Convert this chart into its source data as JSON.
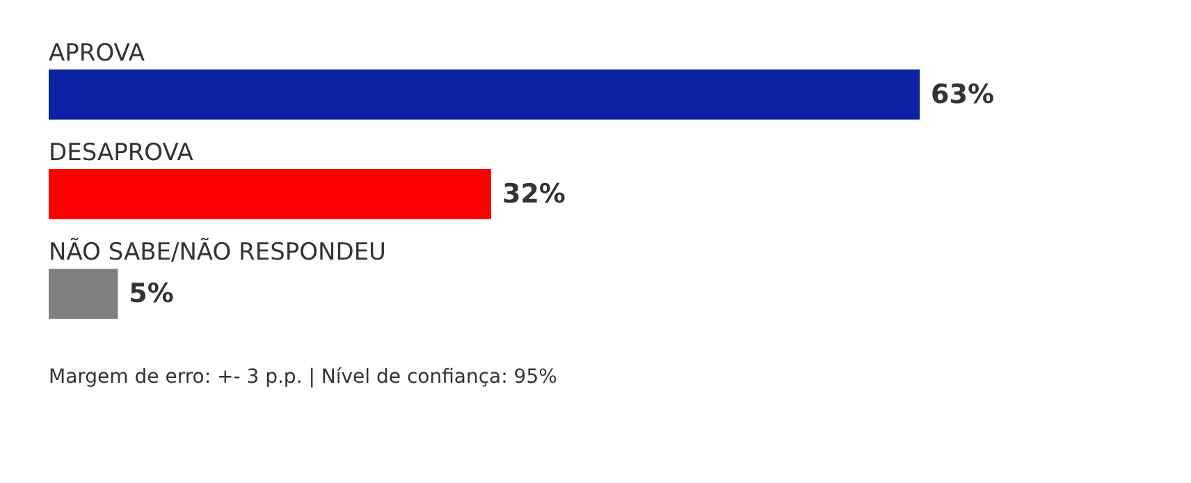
{
  "chart_data": {
    "type": "bar",
    "orientation": "horizontal",
    "categories": [
      "APROVA",
      "DESAPROVA",
      "NÃO SABE/NÃO RESPONDEU"
    ],
    "values": [
      63,
      32,
      5
    ],
    "colors": [
      "#0a22a3",
      "#ff0000",
      "#808080"
    ],
    "data_labels": true,
    "value_labels": [
      "63%",
      "32%",
      "5%"
    ],
    "annotations": [
      "Margem de erro: +- 3 p.p. | Nível de confiança: 95%"
    ]
  }
}
